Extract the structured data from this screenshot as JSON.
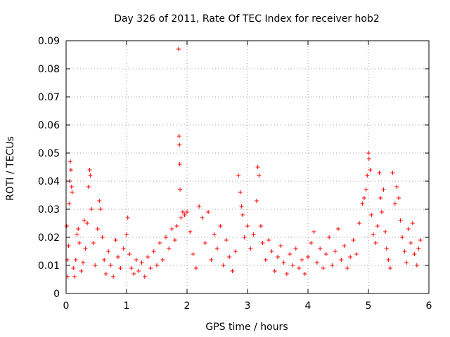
{
  "chart_data": {
    "type": "scatter",
    "title": "Day 326 of 2011, Rate Of TEC Index for receiver hob2",
    "xlabel": "GPS time / hours",
    "ylabel": "ROTI / TECUs",
    "xlim": [
      0,
      6
    ],
    "ylim": [
      0,
      0.09
    ],
    "xticks": [
      0,
      1,
      2,
      3,
      4,
      5,
      6
    ],
    "xtick_labels": [
      "0",
      "1",
      "2",
      "3",
      "4",
      "5",
      "6"
    ],
    "yticks": [
      0,
      0.01,
      0.02,
      0.03,
      0.04,
      0.05,
      0.06,
      0.07,
      0.08,
      0.09
    ],
    "ytick_labels": [
      "0",
      "0.01",
      "0.02",
      "0.03",
      "0.04",
      "0.05",
      "0.06",
      "0.07",
      "0.08",
      "0.09"
    ],
    "grid": true,
    "marker": "+",
    "series_color": "#ff0000",
    "series": [
      {
        "name": "ROTI",
        "points": [
          [
            0.01,
            0.024
          ],
          [
            0.02,
            0.012
          ],
          [
            0.03,
            0.006
          ],
          [
            0.04,
            0.017
          ],
          [
            0.05,
            0.032
          ],
          [
            0.06,
            0.04
          ],
          [
            0.07,
            0.047
          ],
          [
            0.08,
            0.044
          ],
          [
            0.09,
            0.038
          ],
          [
            0.1,
            0.036
          ],
          [
            0.12,
            0.009
          ],
          [
            0.14,
            0.006
          ],
          [
            0.16,
            0.012
          ],
          [
            0.18,
            0.021
          ],
          [
            0.2,
            0.023
          ],
          [
            0.22,
            0.018
          ],
          [
            0.25,
            0.008
          ],
          [
            0.28,
            0.011
          ],
          [
            0.3,
            0.026
          ],
          [
            0.32,
            0.016
          ],
          [
            0.35,
            0.025
          ],
          [
            0.37,
            0.038
          ],
          [
            0.39,
            0.044
          ],
          [
            0.4,
            0.042
          ],
          [
            0.42,
            0.03
          ],
          [
            0.45,
            0.018
          ],
          [
            0.48,
            0.01
          ],
          [
            0.52,
            0.023
          ],
          [
            0.55,
            0.033
          ],
          [
            0.57,
            0.03
          ],
          [
            0.6,
            0.02
          ],
          [
            0.63,
            0.012
          ],
          [
            0.66,
            0.007
          ],
          [
            0.7,
            0.015
          ],
          [
            0.74,
            0.01
          ],
          [
            0.78,
            0.006
          ],
          [
            0.82,
            0.019
          ],
          [
            0.86,
            0.013
          ],
          [
            0.9,
            0.009
          ],
          [
            0.95,
            0.016
          ],
          [
            1.0,
            0.021
          ],
          [
            1.02,
            0.027
          ],
          [
            1.05,
            0.014
          ],
          [
            1.08,
            0.009
          ],
          [
            1.12,
            0.007
          ],
          [
            1.16,
            0.012
          ],
          [
            1.2,
            0.008
          ],
          [
            1.25,
            0.011
          ],
          [
            1.3,
            0.006
          ],
          [
            1.35,
            0.013
          ],
          [
            1.4,
            0.009
          ],
          [
            1.45,
            0.015
          ],
          [
            1.5,
            0.01
          ],
          [
            1.55,
            0.018
          ],
          [
            1.6,
            0.012
          ],
          [
            1.65,
            0.02
          ],
          [
            1.7,
            0.016
          ],
          [
            1.75,
            0.023
          ],
          [
            1.8,
            0.019
          ],
          [
            1.83,
            0.024
          ],
          [
            1.86,
            0.087
          ],
          [
            1.87,
            0.056
          ],
          [
            1.875,
            0.053
          ],
          [
            1.88,
            0.046
          ],
          [
            1.885,
            0.037
          ],
          [
            1.9,
            0.027
          ],
          [
            1.93,
            0.029
          ],
          [
            1.96,
            0.028
          ],
          [
            2.0,
            0.029
          ],
          [
            2.05,
            0.022
          ],
          [
            2.1,
            0.014
          ],
          [
            2.15,
            0.009
          ],
          [
            2.2,
            0.031
          ],
          [
            2.25,
            0.027
          ],
          [
            2.3,
            0.018
          ],
          [
            2.35,
            0.029
          ],
          [
            2.4,
            0.012
          ],
          [
            2.45,
            0.021
          ],
          [
            2.5,
            0.016
          ],
          [
            2.55,
            0.024
          ],
          [
            2.6,
            0.01
          ],
          [
            2.65,
            0.019
          ],
          [
            2.7,
            0.013
          ],
          [
            2.75,
            0.008
          ],
          [
            2.8,
            0.015
          ],
          [
            2.85,
            0.042
          ],
          [
            2.88,
            0.036
          ],
          [
            2.9,
            0.031
          ],
          [
            2.92,
            0.028
          ],
          [
            2.95,
            0.02
          ],
          [
            3.0,
            0.024
          ],
          [
            3.05,
            0.016
          ],
          [
            3.1,
            0.021
          ],
          [
            3.15,
            0.033
          ],
          [
            3.17,
            0.045
          ],
          [
            3.19,
            0.042
          ],
          [
            3.22,
            0.024
          ],
          [
            3.25,
            0.018
          ],
          [
            3.3,
            0.012
          ],
          [
            3.35,
            0.019
          ],
          [
            3.4,
            0.015
          ],
          [
            3.45,
            0.008
          ],
          [
            3.5,
            0.013
          ],
          [
            3.55,
            0.017
          ],
          [
            3.6,
            0.011
          ],
          [
            3.65,
            0.007
          ],
          [
            3.7,
            0.014
          ],
          [
            3.75,
            0.01
          ],
          [
            3.8,
            0.016
          ],
          [
            3.85,
            0.009
          ],
          [
            3.9,
            0.012
          ],
          [
            3.95,
            0.007
          ],
          [
            4.0,
            0.013
          ],
          [
            4.05,
            0.018
          ],
          [
            4.1,
            0.022
          ],
          [
            4.15,
            0.011
          ],
          [
            4.2,
            0.016
          ],
          [
            4.25,
            0.009
          ],
          [
            4.3,
            0.014
          ],
          [
            4.35,
            0.02
          ],
          [
            4.4,
            0.01
          ],
          [
            4.45,
            0.015
          ],
          [
            4.5,
            0.023
          ],
          [
            4.55,
            0.012
          ],
          [
            4.6,
            0.017
          ],
          [
            4.65,
            0.009
          ],
          [
            4.7,
            0.013
          ],
          [
            4.75,
            0.019
          ],
          [
            4.8,
            0.014
          ],
          [
            4.85,
            0.025
          ],
          [
            4.9,
            0.032
          ],
          [
            4.93,
            0.034
          ],
          [
            4.96,
            0.037
          ],
          [
            4.98,
            0.042
          ],
          [
            5.0,
            0.05
          ],
          [
            5.01,
            0.048
          ],
          [
            5.03,
            0.044
          ],
          [
            5.05,
            0.028
          ],
          [
            5.08,
            0.021
          ],
          [
            5.12,
            0.018
          ],
          [
            5.15,
            0.024
          ],
          [
            5.18,
            0.043
          ],
          [
            5.2,
            0.034
          ],
          [
            5.22,
            0.029
          ],
          [
            5.25,
            0.037
          ],
          [
            5.28,
            0.022
          ],
          [
            5.3,
            0.016
          ],
          [
            5.33,
            0.012
          ],
          [
            5.36,
            0.009
          ],
          [
            5.4,
            0.043
          ],
          [
            5.44,
            0.032
          ],
          [
            5.47,
            0.038
          ],
          [
            5.5,
            0.034
          ],
          [
            5.53,
            0.026
          ],
          [
            5.56,
            0.02
          ],
          [
            5.6,
            0.015
          ],
          [
            5.63,
            0.011
          ],
          [
            5.66,
            0.023
          ],
          [
            5.7,
            0.018
          ],
          [
            5.73,
            0.025
          ],
          [
            5.76,
            0.014
          ],
          [
            5.8,
            0.01
          ],
          [
            5.83,
            0.016
          ],
          [
            5.86,
            0.019
          ]
        ]
      }
    ]
  }
}
